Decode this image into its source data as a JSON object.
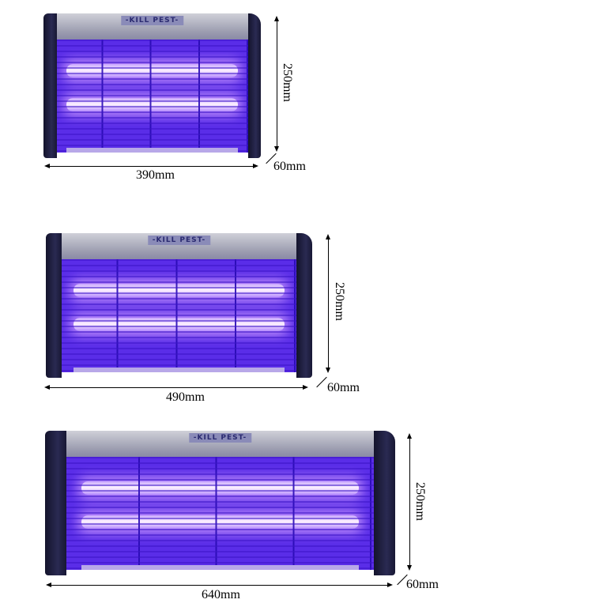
{
  "brand_label": "-KILL PEST-",
  "products": [
    {
      "width": "390mm",
      "height": "250mm",
      "depth": "60mm"
    },
    {
      "width": "490mm",
      "height": "250mm",
      "depth": "60mm"
    },
    {
      "width": "640mm",
      "height": "250mm",
      "depth": "60mm"
    }
  ],
  "colors": {
    "uv_glow": "#5a2de8",
    "end_cap": "#1a1a3a",
    "top_bar": "#b0b0c0"
  }
}
